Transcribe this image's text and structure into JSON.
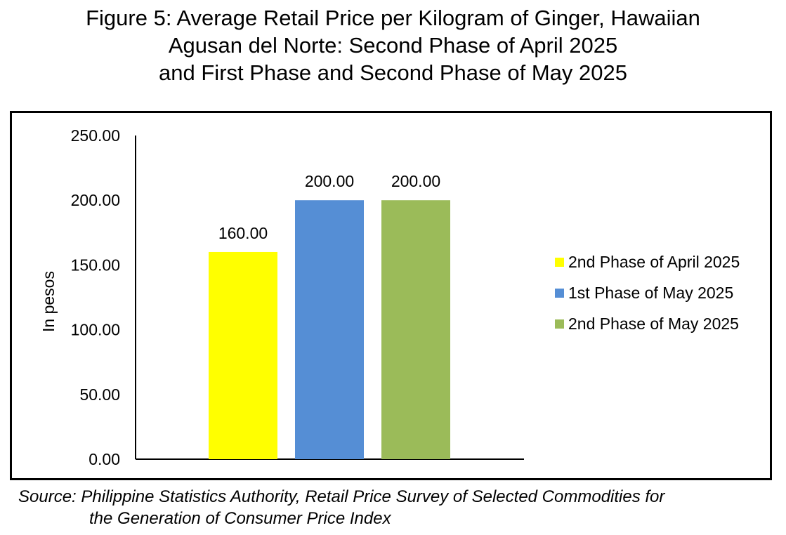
{
  "title": {
    "line1": "Figure 5: Average Retail Price per Kilogram of Ginger, Hawaiian",
    "line2": "Agusan del Norte: Second Phase of April 2025",
    "line3": "and First Phase and Second Phase of May 2025"
  },
  "source": {
    "line1": "Source: Philippine Statistics Authority, Retail Price Survey of Selected Commodities for",
    "line2": "the Generation of Consumer Price Index"
  },
  "chart_data": {
    "type": "bar",
    "categories": [
      "2nd Phase of April 2025",
      "1st Phase of May 2025",
      "2nd Phase of May 2025"
    ],
    "values": [
      160,
      200,
      200
    ],
    "value_labels": [
      "160.00",
      "200.00",
      "200.00"
    ],
    "colors": [
      "#FFFF00",
      "#558ED5",
      "#9BBB59"
    ],
    "ylabel": "In pesos",
    "xlabel": "",
    "ylim": [
      0,
      250
    ],
    "yticks": [
      0,
      50,
      100,
      150,
      200,
      250
    ],
    "ytick_labels": [
      "0.00",
      "50.00",
      "100.00",
      "150.00",
      "200.00",
      "250.00"
    ],
    "grid": false,
    "legend": {
      "position": "right",
      "entries": [
        "2nd Phase of April 2025",
        "1st Phase of May 2025",
        "2nd Phase of May 2025"
      ]
    }
  }
}
